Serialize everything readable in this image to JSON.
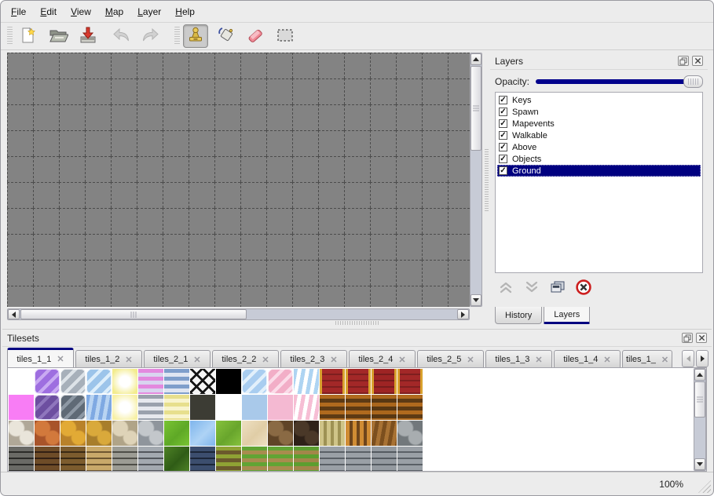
{
  "window": {
    "chrome": "#ececec",
    "accent": "#000080"
  },
  "menu": {
    "items": [
      "File",
      "Edit",
      "View",
      "Map",
      "Layer",
      "Help"
    ]
  },
  "toolbar": {
    "groups": [
      [
        {
          "name": "new",
          "icon": "new-file"
        },
        {
          "name": "open",
          "icon": "open-folder"
        },
        {
          "name": "save",
          "icon": "save"
        }
      ],
      [
        {
          "name": "undo",
          "icon": "undo",
          "disabled": true
        },
        {
          "name": "redo",
          "icon": "redo",
          "disabled": true
        }
      ],
      [
        {
          "name": "stamp-tool",
          "icon": "stamp",
          "active": true
        },
        {
          "name": "fill-tool",
          "icon": "fill"
        },
        {
          "name": "eraser-tool",
          "icon": "eraser"
        },
        {
          "name": "select-tool",
          "icon": "select"
        }
      ]
    ]
  },
  "canvas": {
    "bg": "#838383",
    "grid_color": "#4c4c4c",
    "cell": 32,
    "cols": 19,
    "rows": 11
  },
  "layers_panel": {
    "title": "Layers",
    "opacity_label": "Opacity:",
    "layers": [
      {
        "label": "Keys",
        "checked": true
      },
      {
        "label": "Spawn",
        "checked": true
      },
      {
        "label": "Mapevents",
        "checked": true
      },
      {
        "label": "Walkable",
        "checked": true
      },
      {
        "label": "Above",
        "checked": true
      },
      {
        "label": "Objects",
        "checked": true
      },
      {
        "label": "Ground",
        "checked": true,
        "selected": true
      }
    ],
    "buttons": [
      {
        "name": "raise-layer",
        "icon": "up2",
        "disabled": true
      },
      {
        "name": "lower-layer",
        "icon": "down2",
        "disabled": true
      },
      {
        "name": "duplicate-layer",
        "icon": "dup"
      },
      {
        "name": "delete-layer",
        "icon": "del"
      }
    ],
    "tabs": [
      {
        "label": "History"
      },
      {
        "label": "Layers",
        "active": true
      }
    ]
  },
  "tilesets_panel": {
    "title": "Tilesets",
    "close_glyph": "✕",
    "tabs": [
      {
        "label": "tiles_1_1",
        "active": true
      },
      {
        "label": "tiles_1_2"
      },
      {
        "label": "tiles_2_1"
      },
      {
        "label": "tiles_2_2"
      },
      {
        "label": "tiles_2_3"
      },
      {
        "label": "tiles_2_4"
      },
      {
        "label": "tiles_2_5"
      },
      {
        "label": "tiles_1_3"
      },
      {
        "label": "tiles_1_4"
      },
      {
        "label": "tiles_1_",
        "truncated": true
      }
    ],
    "tiles": {
      "rows": [
        [
          {
            "p": "empty"
          },
          {
            "p": "glass",
            "c1": "#9e6ee0",
            "c2": "#c9aaf2"
          },
          {
            "p": "glass",
            "c1": "#a7b0ba",
            "c2": "#dde3e8"
          },
          {
            "p": "glass",
            "c1": "#9cc4ea",
            "c2": "#ddeefb"
          },
          {
            "p": "glow",
            "c1": "#f3ec8e"
          },
          {
            "p": "hstripes",
            "c1": "#e389de",
            "c2": "#d9d4ef"
          },
          {
            "p": "hstripes",
            "c1": "#7f9ecb",
            "c2": "#dfe5f2"
          },
          {
            "p": "lattice",
            "c1": "#f5f5f5"
          },
          {
            "p": "solid",
            "c1": "#000000"
          },
          {
            "p": "glass",
            "c1": "#a9cdf0",
            "c2": "#e2f0fb"
          },
          {
            "p": "glass",
            "c1": "#f2aec7",
            "c2": "#fbdce9"
          },
          {
            "p": "wavy",
            "c1": "#aed4f2",
            "c2": "#ffffff"
          },
          {
            "p": "carpet",
            "c1": "#a32828",
            "c2": "#7e1f1f",
            "c3": "#d8a12e"
          },
          {
            "p": "carpet",
            "c1": "#a32828",
            "c2": "#7e1f1f",
            "c3": "#d8a12e"
          },
          {
            "p": "carpet",
            "c1": "#9e2424",
            "c2": "#781c1c",
            "c3": "#d8a12e"
          },
          {
            "p": "carpet",
            "c1": "#a32828",
            "c2": "#7e1f1f",
            "c3": "#d8a12e"
          }
        ],
        [
          {
            "p": "solid",
            "c1": "#f87df5"
          },
          {
            "p": "glass",
            "c1": "#6d4fa0",
            "c2": "#8f76bd"
          },
          {
            "p": "glass",
            "c1": "#5f6a76",
            "c2": "#8d98a4"
          },
          {
            "p": "wavy",
            "c1": "#7fa9e2",
            "c2": "#b9d4f2"
          },
          {
            "p": "glow",
            "c1": "#f7f0a6"
          },
          {
            "p": "hstripes",
            "c1": "#9aa1ad",
            "c2": "#e6e8ee"
          },
          {
            "p": "hstripes",
            "c1": "#e7df8d",
            "c2": "#f8f4cd"
          },
          {
            "p": "solid",
            "c1": "#3c3c34"
          },
          {
            "p": "empty"
          },
          {
            "p": "solid",
            "c1": "#a9c9ea"
          },
          {
            "p": "solid",
            "c1": "#f4b9d2"
          },
          {
            "p": "wavy",
            "c1": "#f6bed4",
            "c2": "#ffffff"
          },
          {
            "p": "hstripes",
            "c1": "#b06a1e",
            "c2": "#5d3a14"
          },
          {
            "p": "hstripes",
            "c1": "#b06a1e",
            "c2": "#5d3a14"
          },
          {
            "p": "hstripes",
            "c1": "#aa661c",
            "c2": "#583712"
          },
          {
            "p": "hstripes",
            "c1": "#b06a1e",
            "c2": "#5d3a14"
          }
        ],
        [
          {
            "p": "spots",
            "c1": "#e9e5da",
            "c2": "#b0a898"
          },
          {
            "p": "spots",
            "c1": "#d2793c",
            "c2": "#a8542a"
          },
          {
            "p": "spots",
            "c1": "#e2aa35",
            "c2": "#b9822a"
          },
          {
            "p": "spots",
            "c1": "#d9a93b",
            "c2": "#a87e2c"
          },
          {
            "p": "spots",
            "c1": "#ded3b8",
            "c2": "#b0a488"
          },
          {
            "p": "spots",
            "c1": "#c3c7cb",
            "c2": "#8f959c"
          },
          {
            "p": "tex",
            "c1": "#79c433",
            "c2": "#5ea826"
          },
          {
            "p": "tex",
            "c1": "#7fb5ec",
            "c2": "#aed3f5"
          },
          {
            "p": "tex",
            "c1": "#86c23c",
            "c2": "#68a52c"
          },
          {
            "p": "tex",
            "c1": "#eee0c2",
            "c2": "#e0cda6"
          },
          {
            "p": "spots",
            "c1": "#8a6a44",
            "c2": "#5f4427"
          },
          {
            "p": "spots",
            "c1": "#4a3828",
            "c2": "#2e2118"
          },
          {
            "p": "vstripes",
            "c1": "#cfc488",
            "c2": "#9e9254"
          },
          {
            "p": "vstripes",
            "c1": "#d08c34",
            "c2": "#6e451c"
          },
          {
            "p": "wavy",
            "c1": "#a87234",
            "c2": "#7c4f1e"
          },
          {
            "p": "spots",
            "c1": "#a8adb0",
            "c2": "#72787c"
          }
        ],
        [
          {
            "p": "wall",
            "c1": "#6a6a66",
            "c2": "#2a2a28"
          },
          {
            "p": "wall",
            "c1": "#6e4c28",
            "c2": "#332014"
          },
          {
            "p": "wall",
            "c1": "#7c5c2e",
            "c2": "#3a2a14"
          },
          {
            "p": "wall",
            "c1": "#c9a96a",
            "c2": "#6e5630"
          },
          {
            "p": "wall",
            "c1": "#9c9c94",
            "c2": "#4e4e48"
          },
          {
            "p": "wall",
            "c1": "#a3a9b0",
            "c2": "#52565c"
          },
          {
            "p": "tex",
            "c1": "#4e8226",
            "c2": "#2f5c16"
          },
          {
            "p": "wall",
            "c1": "#3c4e6e",
            "c2": "#1c2638"
          },
          {
            "p": "hstripes",
            "c1": "#8fa234",
            "c2": "#6b5a2c"
          },
          {
            "p": "hstripes",
            "c1": "#61a434",
            "c2": "#a88c4e"
          },
          {
            "p": "hstripes",
            "c1": "#61a434",
            "c2": "#a88c4e"
          },
          {
            "p": "hstripes",
            "c1": "#5c9e30",
            "c2": "#a2864a"
          },
          {
            "p": "wall",
            "c1": "#9aa0a6",
            "c2": "#5a6066"
          },
          {
            "p": "wall",
            "c1": "#9aa0a6",
            "c2": "#5a6066"
          },
          {
            "p": "wall",
            "c1": "#949aa0",
            "c2": "#555b61"
          },
          {
            "p": "wall",
            "c1": "#9aa0a6",
            "c2": "#5a6066"
          }
        ]
      ]
    }
  },
  "statusbar": {
    "zoom": "100%"
  }
}
